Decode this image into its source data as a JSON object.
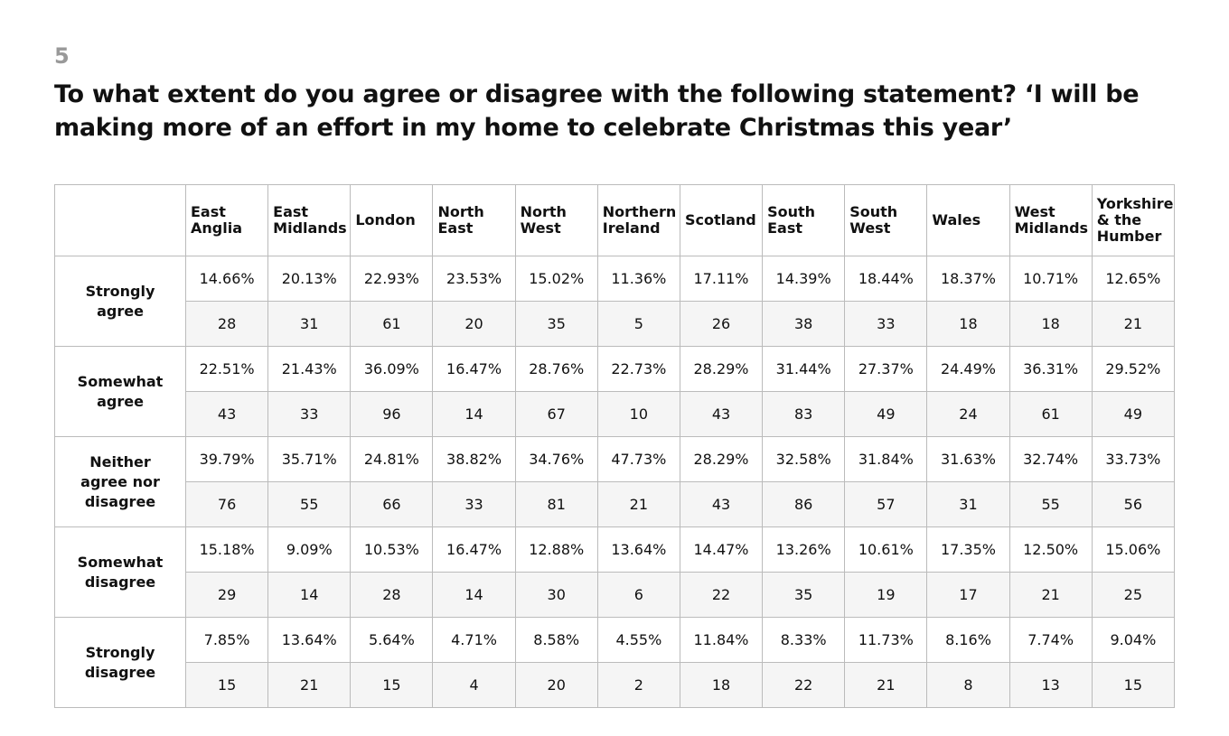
{
  "header": {
    "number": "5",
    "title": "To what extent do you agree or disagree with the following statement? ‘I will be making more of an effort in my home to celebrate Christmas this year’"
  },
  "table": {
    "columns": [
      "East Anglia",
      "East Midlands",
      "London",
      "North East",
      "North West",
      "Northern Ireland",
      "Scotland",
      "South East",
      "South West",
      "Wales",
      "West Midlands",
      "Yorkshire & the Humber"
    ],
    "rows": [
      {
        "label": "Strongly agree",
        "percents": [
          "14.66%",
          "20.13%",
          "22.93%",
          "23.53%",
          "15.02%",
          "11.36%",
          "17.11%",
          "14.39%",
          "18.44%",
          "18.37%",
          "10.71%",
          "12.65%"
        ],
        "counts": [
          28,
          31,
          61,
          20,
          35,
          5,
          26,
          38,
          33,
          18,
          18,
          21
        ]
      },
      {
        "label": "Somewhat agree",
        "percents": [
          "22.51%",
          "21.43%",
          "36.09%",
          "16.47%",
          "28.76%",
          "22.73%",
          "28.29%",
          "31.44%",
          "27.37%",
          "24.49%",
          "36.31%",
          "29.52%"
        ],
        "counts": [
          43,
          33,
          96,
          14,
          67,
          10,
          43,
          83,
          49,
          24,
          61,
          49
        ]
      },
      {
        "label": "Neither agree nor disagree",
        "percents": [
          "39.79%",
          "35.71%",
          "24.81%",
          "38.82%",
          "34.76%",
          "47.73%",
          "28.29%",
          "32.58%",
          "31.84%",
          "31.63%",
          "32.74%",
          "33.73%"
        ],
        "counts": [
          76,
          55,
          66,
          33,
          81,
          21,
          43,
          86,
          57,
          31,
          55,
          56
        ]
      },
      {
        "label": "Somewhat disagree",
        "percents": [
          "15.18%",
          "9.09%",
          "10.53%",
          "16.47%",
          "12.88%",
          "13.64%",
          "14.47%",
          "13.26%",
          "10.61%",
          "17.35%",
          "12.50%",
          "15.06%"
        ],
        "counts": [
          29,
          14,
          28,
          14,
          30,
          6,
          22,
          35,
          19,
          17,
          21,
          25
        ]
      },
      {
        "label": "Strongly disagree",
        "percents": [
          "7.85%",
          "13.64%",
          "5.64%",
          "4.71%",
          "8.58%",
          "4.55%",
          "11.84%",
          "8.33%",
          "11.73%",
          "8.16%",
          "7.74%",
          "9.04%"
        ],
        "counts": [
          15,
          21,
          15,
          4,
          20,
          2,
          18,
          22,
          21,
          8,
          13,
          15
        ]
      }
    ]
  }
}
